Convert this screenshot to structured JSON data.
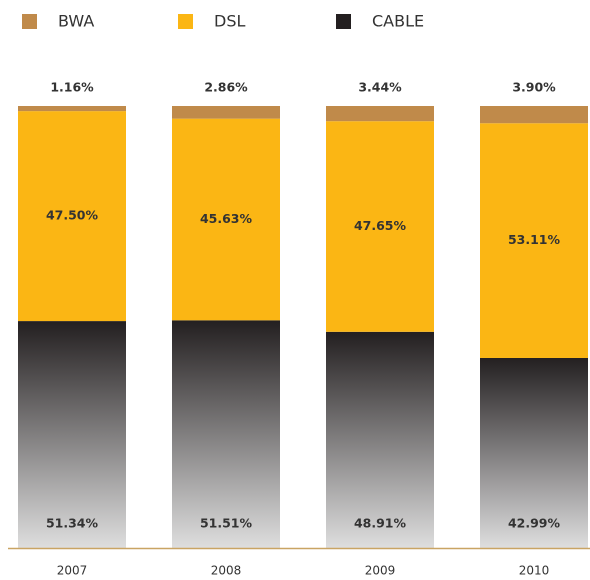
{
  "chart_data": {
    "type": "stacked_bar",
    "categories": [
      "2007",
      "2008",
      "2009",
      "2010"
    ],
    "series": [
      {
        "name": "CABLE",
        "color": "#231f20",
        "values": [
          51.34,
          51.51,
          48.91,
          42.99
        ],
        "value_labels": [
          "51.34%",
          "51.51%",
          "48.91%",
          "42.99%"
        ]
      },
      {
        "name": "DSL",
        "color": "#fbb614",
        "values": [
          47.5,
          45.63,
          47.65,
          53.11
        ],
        "value_labels": [
          "47.50%",
          "45.63%",
          "47.65%",
          "53.11%"
        ]
      },
      {
        "name": "BWA",
        "color": "#c08a4a",
        "values": [
          1.16,
          2.86,
          3.44,
          3.9
        ],
        "value_labels": [
          "1.16%",
          "2.86%",
          "3.44%",
          "3.90%"
        ]
      }
    ],
    "legend_order": [
      "BWA",
      "DSL",
      "CABLE"
    ]
  }
}
